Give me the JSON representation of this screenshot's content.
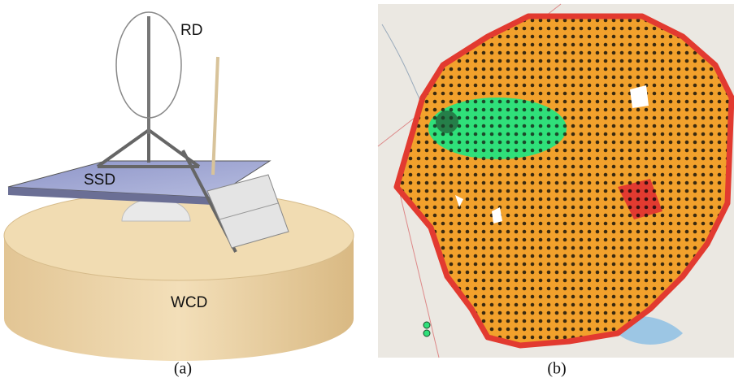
{
  "panel_a": {
    "labels": {
      "rd": "RD",
      "ssd": "SSD",
      "wcd": "WCD"
    },
    "caption": "(a)"
  },
  "panel_b": {
    "caption": "(b)"
  }
}
